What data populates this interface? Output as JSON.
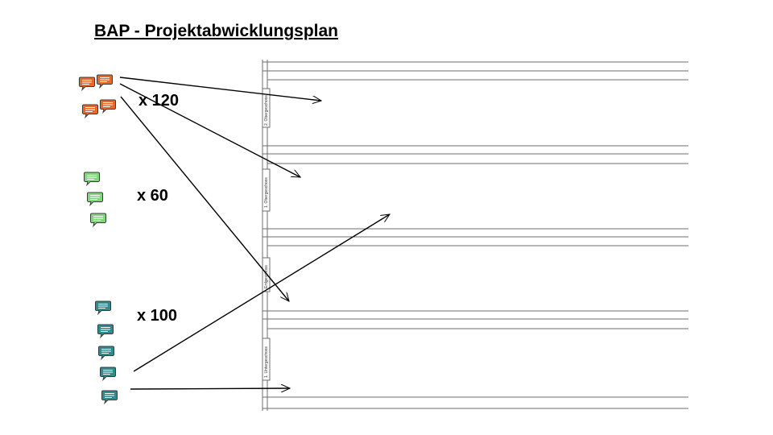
{
  "title": "BAP - Projektabwicklungsplan",
  "colors": {
    "orange": "#e8682a",
    "green": "#7fd87a",
    "teal": "#2e8b8f"
  },
  "groups": [
    {
      "color": "orange",
      "count_label": "x 120",
      "icon": "speech-bubble-icon"
    },
    {
      "color": "green",
      "count_label": "x 60",
      "icon": "speech-bubble-icon"
    },
    {
      "color": "teal",
      "count_label": "x 100",
      "icon": "speech-bubble-icon"
    }
  ],
  "floors": [
    {
      "label": "2. Obergeschoss"
    },
    {
      "label": "1. Obergeschoss"
    },
    {
      "label": "Erdgeschoss"
    },
    {
      "label": "1. Untergeschoss"
    }
  ]
}
